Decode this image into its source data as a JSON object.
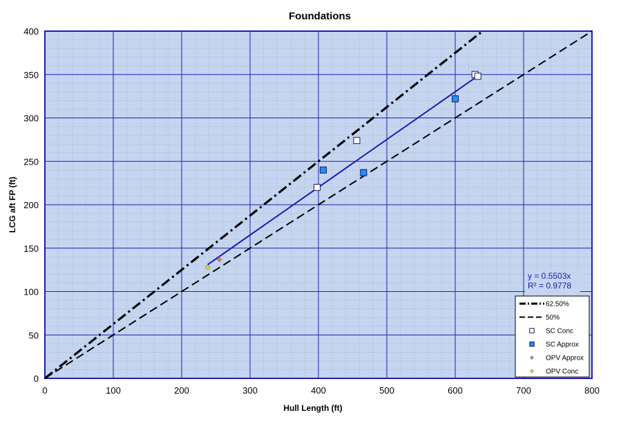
{
  "chart_data": {
    "type": "scatter",
    "title": "Foundations",
    "xlabel": "Hull Length (ft)",
    "ylabel": "LCG aft FP (ft)",
    "xlim": [
      0,
      800
    ],
    "ylim": [
      0,
      400
    ],
    "x_ticks": [
      0,
      100,
      200,
      300,
      400,
      500,
      600,
      700,
      800
    ],
    "y_ticks": [
      0,
      50,
      100,
      150,
      200,
      250,
      300,
      350,
      400
    ],
    "grid": true,
    "legend_position": "bottom-right",
    "lines": [
      {
        "name": "62.50%",
        "slope": 0.625,
        "style": "dash-dot",
        "color": "#000000"
      },
      {
        "name": "50%",
        "slope": 0.5,
        "style": "dashed",
        "color": "#000000"
      }
    ],
    "series": [
      {
        "name": "SC Conc",
        "marker": "square",
        "color": "#ffffff",
        "points": [
          [
            398,
            220
          ],
          [
            456,
            274
          ],
          [
            629,
            350
          ],
          [
            633,
            348
          ]
        ]
      },
      {
        "name": "SC Approx",
        "marker": "square",
        "color": "#1e90ff",
        "points": [
          [
            407,
            240
          ],
          [
            466,
            237
          ],
          [
            600,
            322
          ]
        ]
      },
      {
        "name": "OPV Approx",
        "marker": "diamond",
        "color": "#e07b80",
        "points": [
          [
            255,
            137
          ]
        ]
      },
      {
        "name": "OPV Conc",
        "marker": "diamond",
        "color": "#f5d800",
        "points": [
          [
            238,
            128
          ]
        ]
      }
    ],
    "trendline": {
      "slope": 0.5503,
      "x_range": [
        238,
        633
      ],
      "color": "#1a1ab4",
      "equation": "y = 0.5503x",
      "r2": "R² = 0.9778"
    }
  }
}
